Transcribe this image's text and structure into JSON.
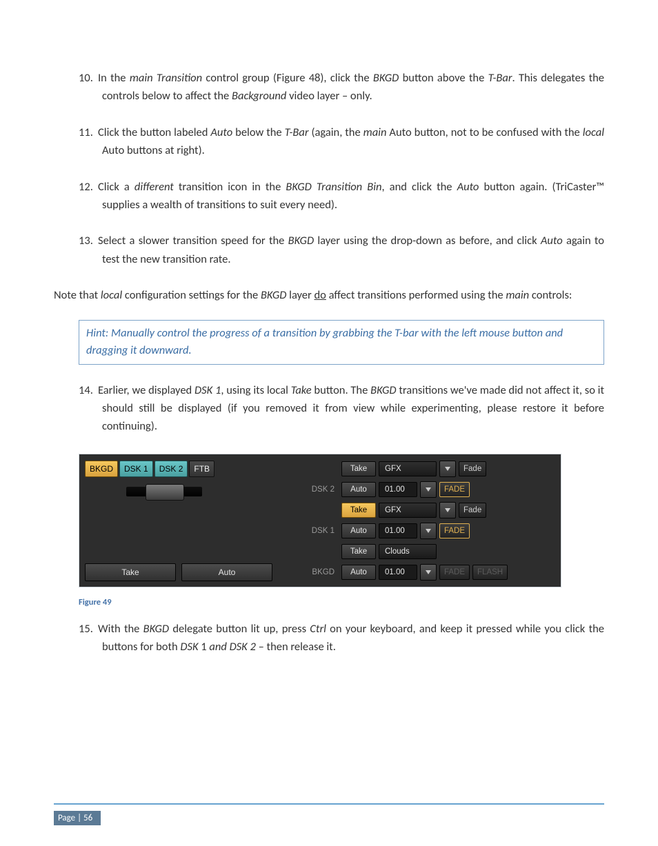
{
  "list": {
    "item10_num": "10.",
    "item10": "In the <i>main Transition</i> control group (Figure 48), click the <i>BKGD</i> button above the <i>T-Bar</i>. This delegates the controls below to affect the <i>Background</i> video layer – only.",
    "item11_num": "11.",
    "item11": "Click the button labeled <i>Auto</i> below the <i>T-Bar</i> (again, the <i>main</i> Auto button, not to be confused with the <i>local</i> Auto buttons at right).",
    "item12_num": "12.",
    "item12": "Click a <i>different</i> transition icon in the <i>BKGD Transition Bin</i>, and click the <i>Auto</i> button again. (TriCaster™ supplies a wealth of transitions to suit every need).",
    "item13_num": "13.",
    "item13": "Select a slower transition speed for the <i>BKGD</i> layer using the drop-down as before, and click <i>Auto</i> again to test the new transition rate.",
    "item14_num": "14.",
    "item14": "Earlier, we displayed <i>DSK 1</i>, using its local <i>Take</i> button.  The <i>BKGD</i> transitions we've made did not affect it, so it should still be displayed (if you removed it from view while experimenting, please restore it before continuing).",
    "item15_num": "15.",
    "item15": "With the <i>BKGD</i> delegate button lit up, press <i>Ctrl</i> on your keyboard, and keep it pressed while you click the buttons for both <i>DSK</i> 1 <i>and DSK 2</i> – then release it."
  },
  "note": "Note that <i>local</i> configuration settings for the <i>BKGD</i> layer <u>do</u> affect transitions performed using the <i>main</i> controls:",
  "hint": "Hint: Manually control the progress of a transition by grabbing the T-bar with the left mouse button and dragging it downward.",
  "figure": {
    "tabs": {
      "bkgd": "BKGD",
      "dsk1": "DSK 1",
      "dsk2": "DSK 2",
      "ftb": "FTB"
    },
    "left": {
      "take": "Take",
      "auto": "Auto"
    },
    "rows": {
      "dsk2": {
        "label": "DSK 2",
        "take": "Take",
        "auto": "Auto",
        "gfx": "GFX",
        "time": "01.00",
        "fade1": "Fade",
        "fade2": "FADE"
      },
      "dsk1": {
        "label": "DSK 1",
        "take": "Take",
        "auto": "Auto",
        "gfx": "GFX",
        "time": "01.00",
        "fade1": "Fade",
        "fade2": "FADE"
      },
      "bkgd": {
        "label": "BKGD",
        "take": "Take",
        "auto": "Auto",
        "clouds": "Clouds",
        "time": "01.00",
        "fade": "FADE",
        "flash": "FLASH"
      }
    },
    "caption": "Figure 49"
  },
  "footer": {
    "page_label": "Page | 56"
  },
  "colors": {
    "hint_border": "#7da3c9",
    "hint_text": "#3b6ea5",
    "footer_rule": "#67a3d0",
    "page_box_bg": "#5b7a95",
    "amber": "#e8b84d",
    "cyan": "#5cb5b6",
    "panel_bg": "#2d2d2d"
  }
}
